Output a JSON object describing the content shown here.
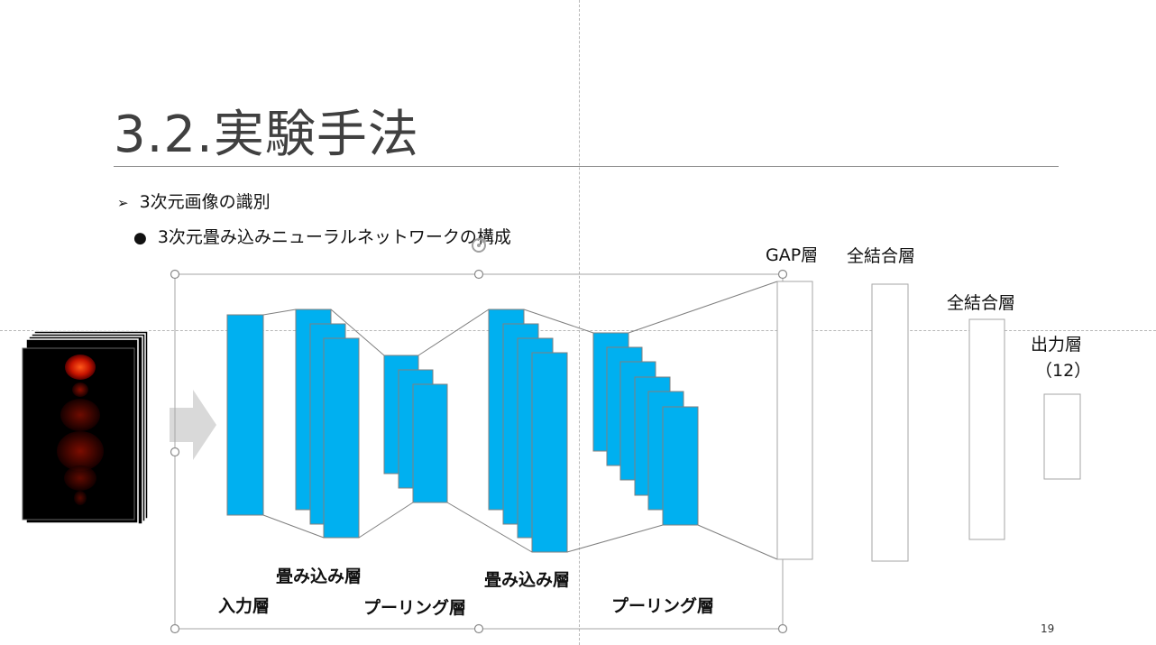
{
  "slide": {
    "title": "3.2.実験手法",
    "bullet_level1": "3次元画像の識別",
    "bullet_level2": "3次元畳み込みニューラルネットワークの構成",
    "page_number": "19"
  },
  "diagram": {
    "input_layer_label": "入力層",
    "conv_layer_label_1": "畳み込み層",
    "pool_layer_label_1": "プーリング層",
    "conv_layer_label_2": "畳み込み層",
    "pool_layer_label_2": "プーリング層",
    "gap_layer_label": "GAP層",
    "fc_layer_label_1": "全結合層",
    "fc_layer_label_2": "全結合層",
    "output_layer_label": "出力層",
    "output_units": "（12）"
  },
  "colors": {
    "feature_map_fill": "#00b0f0",
    "feature_map_stroke": "#7f7f7f",
    "title": "#404040",
    "arrow": "#d9d9d9",
    "scan_background": "#000000"
  }
}
